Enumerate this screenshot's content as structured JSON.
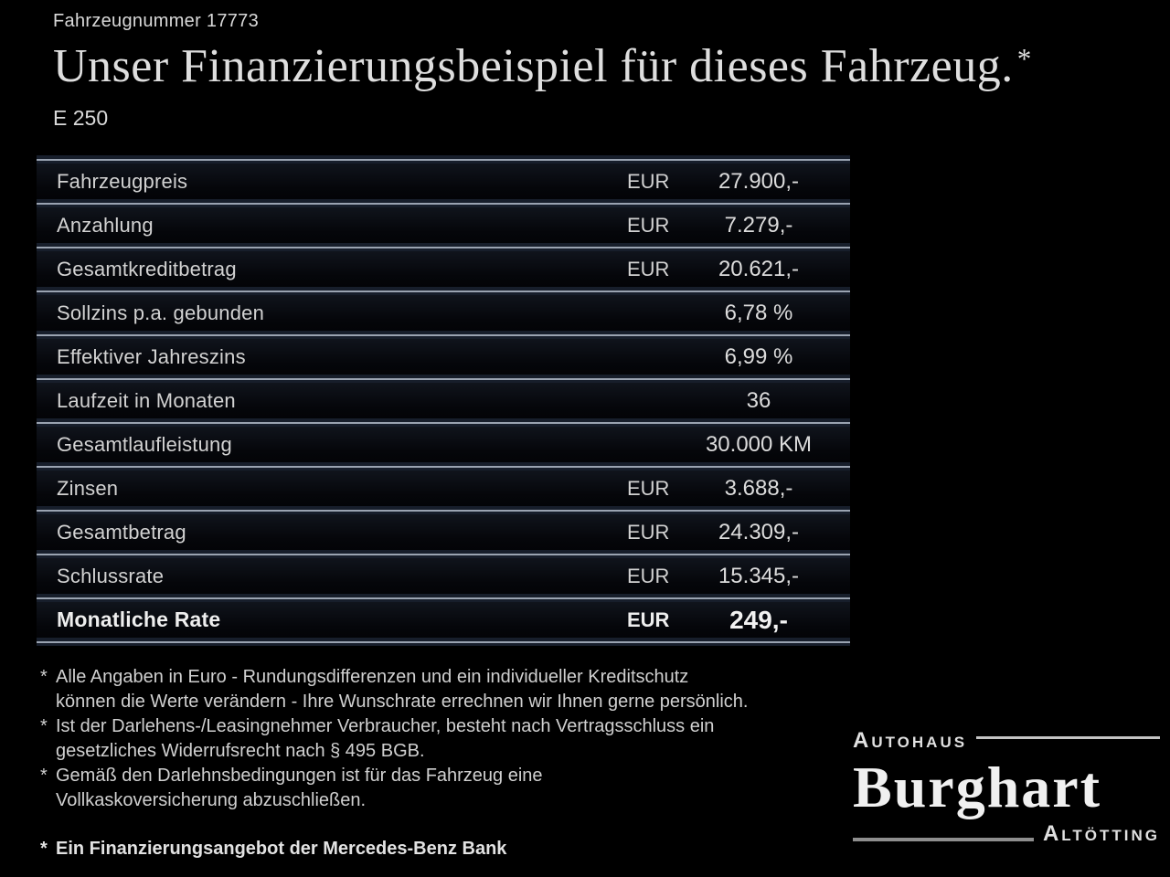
{
  "header": {
    "vehicle_number": "Fahrzeugnummer 17773",
    "title": "Unser Finanzierungsbeispiel für dieses Fahrzeug.",
    "title_marker": "*",
    "model": "E 250"
  },
  "table": {
    "rows": [
      {
        "label": "Fahrzeugpreis",
        "currency": "EUR",
        "value": "27.900,-"
      },
      {
        "label": "Anzahlung",
        "currency": "EUR",
        "value": "7.279,-"
      },
      {
        "label": "Gesamtkreditbetrag",
        "currency": "EUR",
        "value": "20.621,-"
      },
      {
        "label": "Sollzins p.a. gebunden",
        "currency": "",
        "value": "6,78 %"
      },
      {
        "label": "Effektiver Jahreszins",
        "currency": "",
        "value": "6,99 %"
      },
      {
        "label": "Laufzeit in Monaten",
        "currency": "",
        "value": "36"
      },
      {
        "label": "Gesamtlaufleistung",
        "currency": "",
        "value": "30.000 KM"
      },
      {
        "label": "Zinsen",
        "currency": "EUR",
        "value": "3.688,-"
      },
      {
        "label": "Gesamtbetrag",
        "currency": "EUR",
        "value": "24.309,-"
      },
      {
        "label": "Schlussrate",
        "currency": "EUR",
        "value": "15.345,-"
      },
      {
        "label": "Monatliche Rate",
        "currency": "EUR",
        "value": "249,-"
      }
    ]
  },
  "footnotes": [
    {
      "marker": "*",
      "lines": [
        "Alle Angaben in Euro - Rundungsdifferenzen und ein individueller Kreditschutz",
        "können die Werte verändern - Ihre Wunschrate errechnen wir Ihnen gerne persönlich."
      ]
    },
    {
      "marker": "*",
      "lines": [
        "Ist der Darlehens-/Leasingnehmer Verbraucher, besteht nach Vertragsschluss ein",
        "gesetzliches Widerrufsrecht nach § 495 BGB."
      ]
    },
    {
      "marker": "*",
      "lines": [
        "Gemäß den Darlehnsbedingungen ist für das Fahrzeug eine",
        "Vollkaskoversicherung abzuschließen."
      ]
    },
    {
      "marker": "*",
      "lines": [
        "Ein Finanzierungsangebot der Mercedes-Benz Bank"
      ]
    }
  ],
  "logo": {
    "top": "Autohaus",
    "name": "Burghart",
    "bottom": "Altötting"
  },
  "colors": {
    "background": "#000000",
    "text": "#d6d6d6",
    "separator_line": "#9aa3b1",
    "separator_band": "#171e2b",
    "row_background": "#07080d"
  }
}
